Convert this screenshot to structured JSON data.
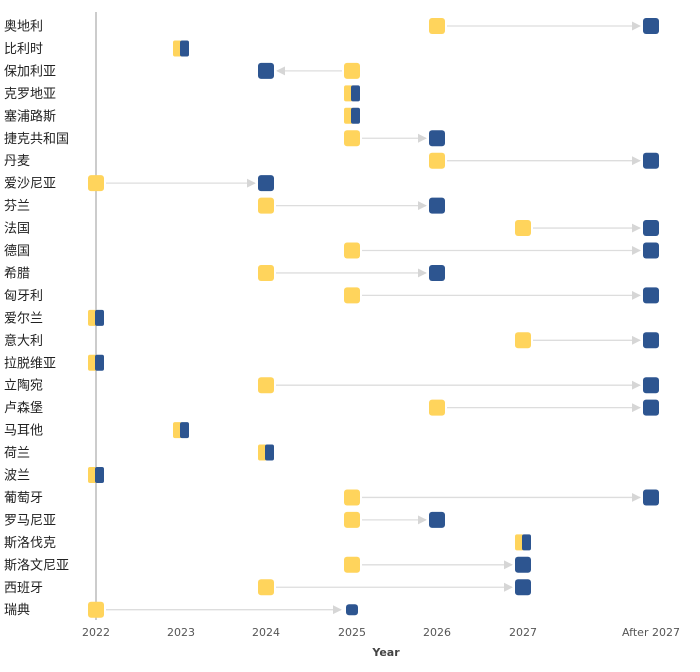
{
  "chart_data": {
    "type": "timeline",
    "xlabel": "Year",
    "x_ticks": [
      "2022",
      "2023",
      "2024",
      "2025",
      "2026",
      "2027",
      "After 2027"
    ],
    "legend": [],
    "colors": {
      "start": "#FFD45C",
      "end": "#2D5590",
      "arrow": "#DDDDDD",
      "baseline": "#CCCCCC"
    },
    "rows": [
      {
        "country": "奥地利",
        "start": "2026",
        "end": "After 2027"
      },
      {
        "country": "比利时",
        "start": "2023",
        "end": "2023"
      },
      {
        "country": "保加利亚",
        "start": "2025",
        "end": "2024"
      },
      {
        "country": "克罗地亚",
        "start": "2025",
        "end": "2025"
      },
      {
        "country": "塞浦路斯",
        "start": "2025",
        "end": "2025"
      },
      {
        "country": "捷克共和国",
        "start": "2025",
        "end": "2026"
      },
      {
        "country": "丹麦",
        "start": "2026",
        "end": "After 2027"
      },
      {
        "country": "爱沙尼亚",
        "start": "2022",
        "end": "2024"
      },
      {
        "country": "芬兰",
        "start": "2024",
        "end": "2026"
      },
      {
        "country": "法国",
        "start": "2027",
        "end": "After 2027"
      },
      {
        "country": "德国",
        "start": "2025",
        "end": "After 2027"
      },
      {
        "country": "希腊",
        "start": "2024",
        "end": "2026"
      },
      {
        "country": "匈牙利",
        "start": "2025",
        "end": "After 2027"
      },
      {
        "country": "爱尔兰",
        "start": "2022",
        "end": "2022"
      },
      {
        "country": "意大利",
        "start": "2027",
        "end": "After 2027"
      },
      {
        "country": "拉脱维亚",
        "start": "2022",
        "end": "2022"
      },
      {
        "country": "立陶宛",
        "start": "2024",
        "end": "After 2027"
      },
      {
        "country": "卢森堡",
        "start": "2026",
        "end": "After 2027"
      },
      {
        "country": "马耳他",
        "start": "2023",
        "end": "2023"
      },
      {
        "country": "荷兰",
        "start": "2024",
        "end": "2024"
      },
      {
        "country": "波兰",
        "start": "2022",
        "end": "2022"
      },
      {
        "country": "葡萄牙",
        "start": "2025",
        "end": "After 2027"
      },
      {
        "country": "罗马尼亚",
        "start": "2025",
        "end": "2026"
      },
      {
        "country": "斯洛伐克",
        "start": "2027",
        "end": "2027"
      },
      {
        "country": "斯洛文尼亚",
        "start": "2025",
        "end": "2027"
      },
      {
        "country": "西班牙",
        "start": "2024",
        "end": "2027"
      },
      {
        "country": "瑞典",
        "start": "2022",
        "end": "2025"
      }
    ]
  }
}
